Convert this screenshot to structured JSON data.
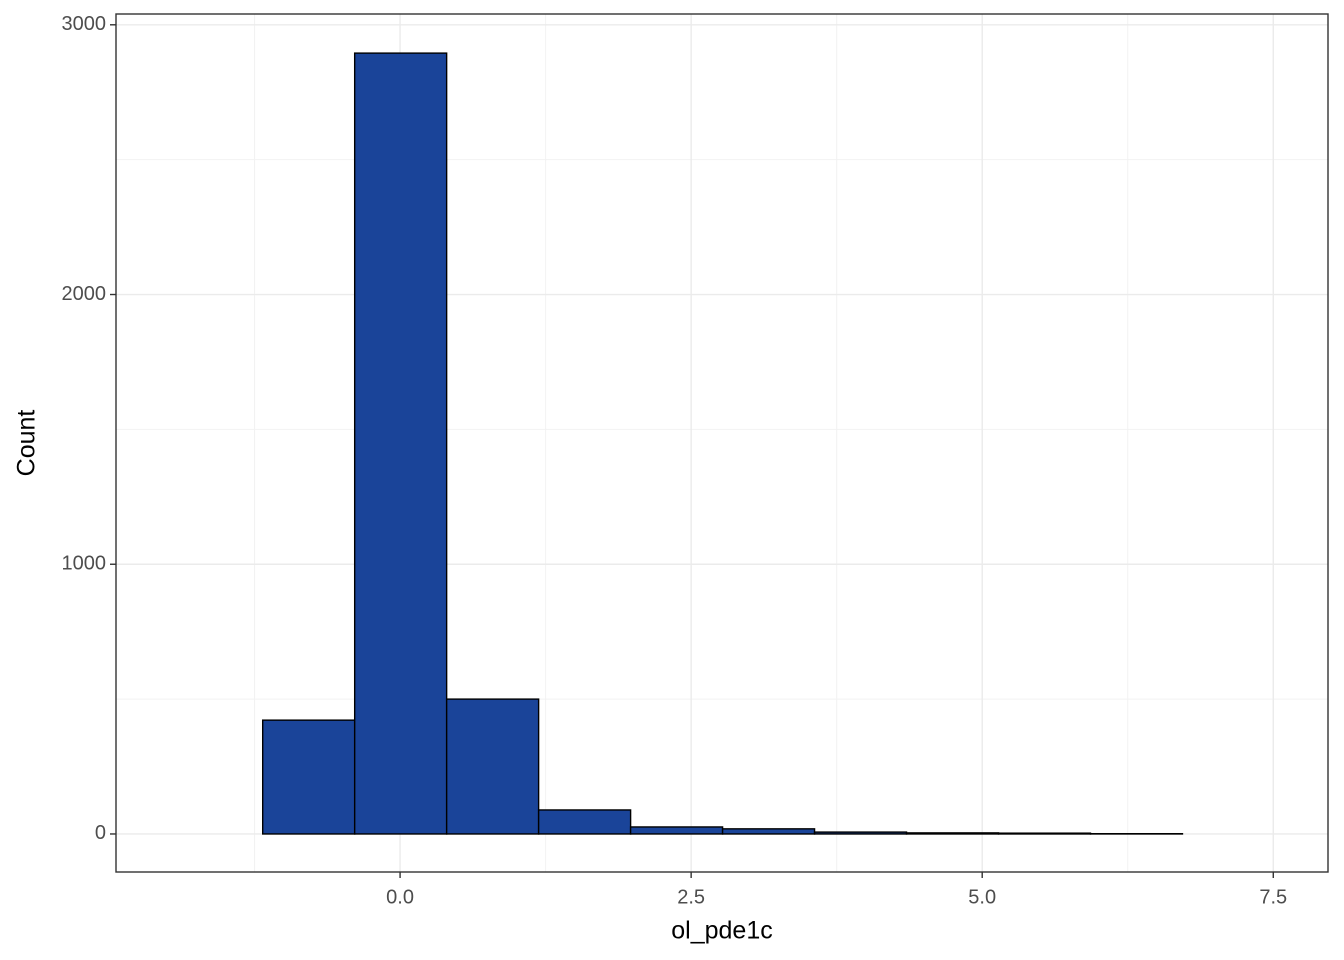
{
  "chart_data": {
    "type": "histogram",
    "x_label": "ol_pde1c",
    "y_label": "Count",
    "bins": [
      -1.97,
      -1.18,
      -0.39,
      0.4,
      1.19,
      1.98,
      2.77,
      3.56,
      4.35,
      5.14,
      5.93,
      6.72,
      7.51
    ],
    "values": [
      0,
      422,
      2895,
      500,
      89,
      26,
      19,
      7,
      4,
      3,
      1,
      0
    ],
    "color": "#1a4499",
    "edge_color": "#000000",
    "xlim": [
      -2.44,
      7.97
    ],
    "ylim": [
      -141,
      3040
    ],
    "xticks": [
      {
        "value": 0,
        "label": "0.0"
      },
      2.5,
      {
        "value": 5,
        "label": "5.0"
      },
      7.5
    ],
    "yticks": [
      0,
      1000,
      2000,
      3000
    ],
    "x_minor_ticks": [
      -1.25,
      1.25,
      3.75,
      6.25
    ],
    "y_minor_ticks": [
      500,
      1500,
      2500
    ],
    "grid": true
  }
}
